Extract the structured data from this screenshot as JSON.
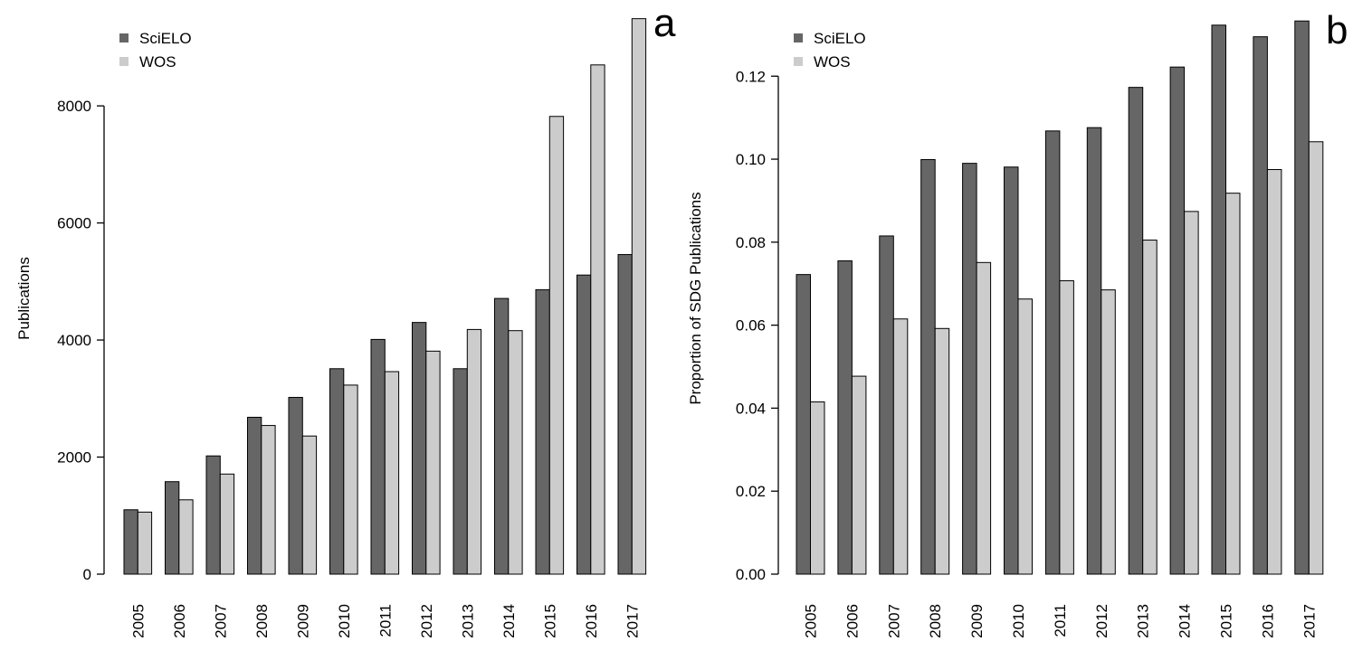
{
  "colors": {
    "scielo": "#666666",
    "wos": "#cccccc",
    "stroke": "#000000"
  },
  "chart_data": [
    {
      "type": "bar",
      "panel_label": "a",
      "ylabel": "Publications",
      "xlabel": "",
      "ylim": [
        0,
        9500
      ],
      "yticks": [
        0,
        2000,
        4000,
        6000,
        8000
      ],
      "ytick_labels": [
        "0",
        "2000",
        "4000",
        "6000",
        "8000"
      ],
      "categories": [
        "2005",
        "2006",
        "2007",
        "2008",
        "2009",
        "2010",
        "2011",
        "2012",
        "2013",
        "2014",
        "2015",
        "2016",
        "2017"
      ],
      "legend": {
        "position": "top-left",
        "entries": [
          "SciELO",
          "WOS"
        ]
      },
      "grid": false,
      "series": [
        {
          "name": "SciELO",
          "values": [
            1100,
            1580,
            2020,
            2680,
            3020,
            3510,
            4010,
            4300,
            3510,
            4710,
            4860,
            5110,
            5460
          ]
        },
        {
          "name": "WOS",
          "values": [
            1060,
            1270,
            1710,
            2540,
            2360,
            3230,
            3460,
            3810,
            4180,
            4160,
            7820,
            8700,
            9490
          ]
        }
      ]
    },
    {
      "type": "bar",
      "panel_label": "b",
      "ylabel": "Proportion of SDG Publications",
      "xlabel": "",
      "ylim": [
        0,
        0.134
      ],
      "yticks": [
        0,
        0.02,
        0.04,
        0.06,
        0.08,
        0.1,
        0.12
      ],
      "ytick_labels": [
        "0.00",
        "0.02",
        "0.04",
        "0.06",
        "0.08",
        "0.10",
        "0.12"
      ],
      "categories": [
        "2005",
        "2006",
        "2007",
        "2008",
        "2009",
        "2010",
        "2011",
        "2012",
        "2013",
        "2014",
        "2015",
        "2016",
        "2017"
      ],
      "legend": {
        "position": "top-left",
        "entries": [
          "SciELO",
          "WOS"
        ]
      },
      "grid": false,
      "series": [
        {
          "name": "SciELO",
          "values": [
            0.0722,
            0.0755,
            0.0815,
            0.0999,
            0.099,
            0.0981,
            0.1068,
            0.1076,
            0.1173,
            0.1222,
            0.1323,
            0.1295,
            0.1333
          ]
        },
        {
          "name": "WOS",
          "values": [
            0.0415,
            0.0477,
            0.0615,
            0.0592,
            0.0751,
            0.0663,
            0.0707,
            0.0685,
            0.0805,
            0.0874,
            0.0918,
            0.0975,
            0.1042
          ]
        }
      ]
    }
  ]
}
